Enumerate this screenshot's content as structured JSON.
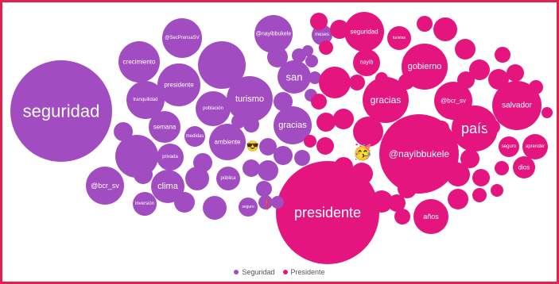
{
  "chart_data": {
    "type": "bubble",
    "legend_position": "bottom",
    "series": [
      {
        "name": "Seguridad",
        "color": "#a24cc2",
        "words": [
          "seguridad",
          "crecimiento",
          "@SecPrensaSV",
          "@nayibbukele",
          "meses",
          "tranquilidad",
          "presidente",
          "turismo",
          "san",
          "población",
          "semana",
          "gracias",
          "medidas",
          "ambiente",
          "privada",
          "@bcr_sv",
          "clima",
          "pública",
          "inversión",
          "seguro"
        ]
      },
      {
        "name": "Presidente",
        "color": "#e5157f",
        "words": [
          "seguridad",
          "turistas",
          "nayib",
          "gobierno",
          "gracias",
          "@bcr_sv",
          "salvador",
          "país",
          "seguro",
          "aprender",
          "@nayibbukele",
          "dios",
          "presidente",
          "años"
        ]
      }
    ]
  },
  "legend": {
    "seguridad_label": "Seguridad",
    "presidente_label": "Presidente",
    "seguridad_color": "#a24cc2",
    "presidente_color": "#e5157f"
  },
  "emojis": [
    "😎",
    "🥳",
    "❗"
  ]
}
